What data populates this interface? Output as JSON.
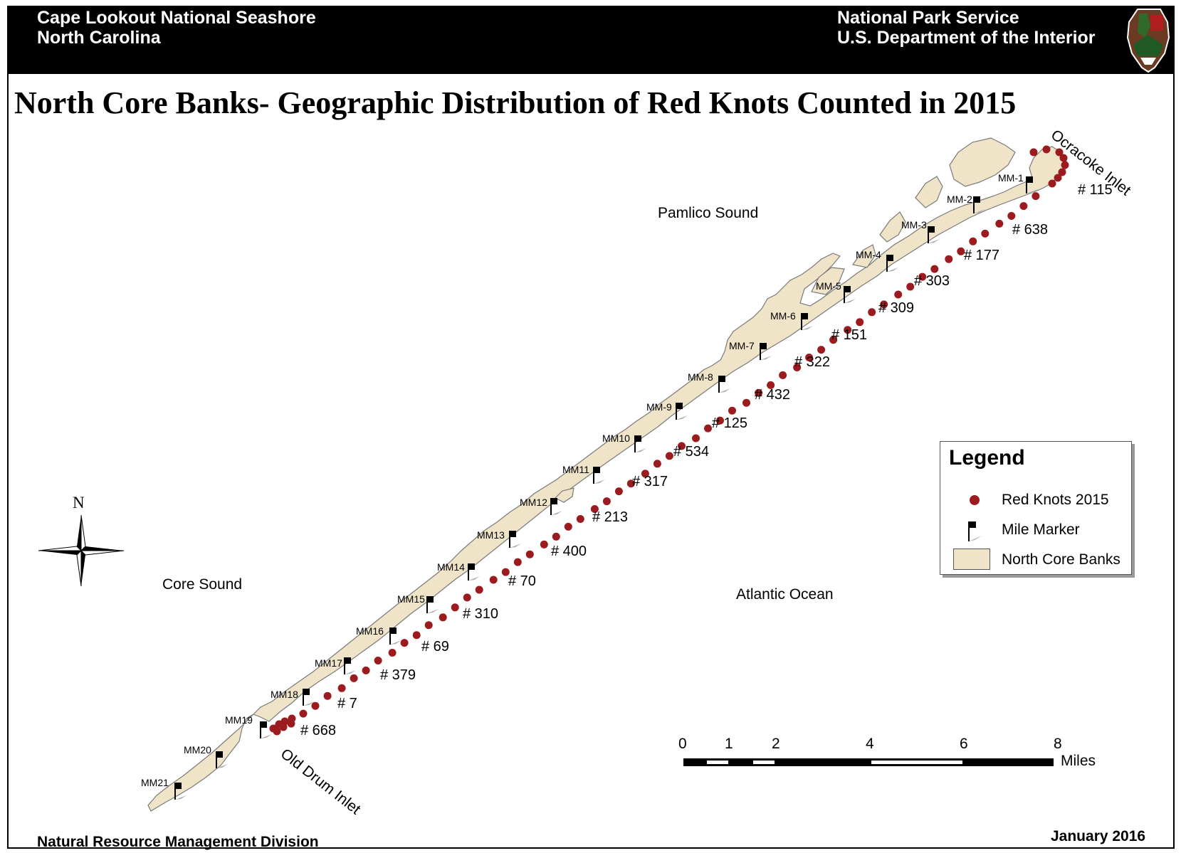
{
  "header": {
    "park_line1": "Cape Lookout National Seashore",
    "park_line2": "North Carolina",
    "agency_line1": "National Park Service",
    "agency_line2": "U.S. Department of the Interior",
    "logo_icon": "nps-arrowhead-logo"
  },
  "title": "North Core Banks- Geographic Distribution of Red Knots Counted in 2015",
  "map_labels": {
    "pamlico": "Pamlico Sound",
    "core_sound": "Core Sound",
    "atlantic": "Atlantic Ocean",
    "ocracoke": "Ocracoke Inlet",
    "old_drum": "Old Drum Inlet",
    "north": "N"
  },
  "mile_markers": [
    "MM-1",
    "MM-2",
    "MM-3",
    "MM-4",
    "MM-5",
    "MM-6",
    "MM-7",
    "MM-8",
    "MM-9",
    "MM10",
    "MM11",
    "MM12",
    "MM13",
    "MM14",
    "MM15",
    "MM16",
    "MM17",
    "MM18",
    "MM19",
    "MM20",
    "MM21"
  ],
  "counts": [
    "# 115",
    "# 638",
    "# 177",
    "# 303",
    "# 309",
    "# 151",
    "# 322",
    "# 432",
    "# 125",
    "# 534",
    "# 317",
    "# 213",
    "# 400",
    "# 70",
    "# 310",
    "# 69",
    "# 379",
    "# 7",
    "# 668"
  ],
  "legend": {
    "title": "Legend",
    "items": [
      {
        "label": "Red Knots 2015",
        "icon": "red-dot-icon"
      },
      {
        "label": "Mile Marker",
        "icon": "flag-icon"
      },
      {
        "label": "North Core Banks",
        "icon": "land-swatch-icon"
      }
    ]
  },
  "scale": {
    "ticks": [
      "0",
      "1",
      "2",
      "4",
      "6",
      "8"
    ],
    "unit": "Miles"
  },
  "footer": {
    "left": "Natural Resource Management Division",
    "right": "January 2016"
  },
  "colors": {
    "land": "#efe4c8",
    "knot": "#9b1b1e",
    "header_bg": "#000000"
  }
}
